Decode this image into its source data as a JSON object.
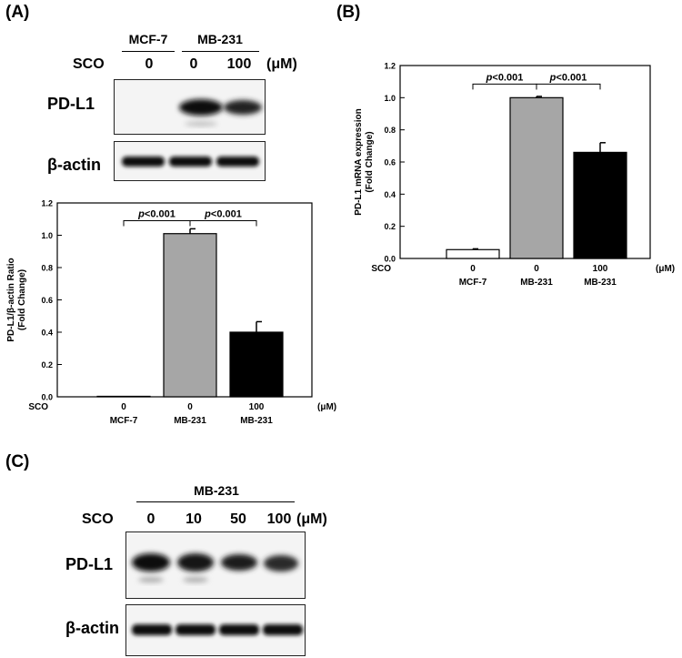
{
  "panel_a": {
    "label": "(A)",
    "blot": {
      "group_headers": [
        "MCF-7",
        "MB-231"
      ],
      "treatment_label": "SCO",
      "doses": [
        "0",
        "0",
        "100"
      ],
      "unit": "(μM)",
      "rows": [
        "PD-L1",
        "β-actin"
      ]
    }
  },
  "panel_b": {
    "label": "(B)"
  },
  "panel_c": {
    "label": "(C)",
    "blot": {
      "group_header": "MB-231",
      "treatment_label": "SCO",
      "doses": [
        "0",
        "10",
        "50",
        "100"
      ],
      "unit": "(μM)",
      "rows": [
        "PD-L1",
        "β-actin"
      ]
    }
  },
  "chart_data": [
    {
      "panel": "A",
      "type": "bar",
      "ylabel": "PD-L1/β-actin Ratio\n(Fold Change)",
      "ylim": [
        0,
        1.2
      ],
      "yticks": [
        "0.0",
        "0.2",
        "0.4",
        "0.6",
        "0.8",
        "1.0",
        "1.2"
      ],
      "x_row_label": "SCO",
      "unit": "(μM)",
      "categories": [
        "0",
        "0",
        "100"
      ],
      "category_groups": [
        "MCF-7",
        "MB-231",
        "MB-231"
      ],
      "values": [
        0.003,
        1.01,
        0.4
      ],
      "errors": [
        0.0,
        0.03,
        0.065
      ],
      "colors": [
        "#ffffff",
        "#a6a6a6",
        "#000000"
      ],
      "annotations": [
        {
          "text": "p<0.001",
          "from": 0,
          "to": 1
        },
        {
          "text": "p<0.001",
          "from": 1,
          "to": 2
        }
      ]
    },
    {
      "panel": "B",
      "type": "bar",
      "ylabel": "PD-L1 mRNA expression\n(Fold Change)",
      "ylim": [
        0,
        1.2
      ],
      "yticks": [
        "0.0",
        "0.2",
        "0.4",
        "0.6",
        "0.8",
        "1.0",
        "1.2"
      ],
      "x_row_label": "SCO",
      "unit": "(μM)",
      "categories": [
        "0",
        "0",
        "100"
      ],
      "category_groups": [
        "MCF-7",
        "MB-231",
        "MB-231"
      ],
      "values": [
        0.055,
        1.0,
        0.66
      ],
      "errors": [
        0.005,
        0.008,
        0.06
      ],
      "colors": [
        "#ffffff",
        "#a6a6a6",
        "#000000"
      ],
      "annotations": [
        {
          "text": "p<0.001",
          "from": 0,
          "to": 1
        },
        {
          "text": "p<0.001",
          "from": 1,
          "to": 2
        }
      ]
    }
  ]
}
